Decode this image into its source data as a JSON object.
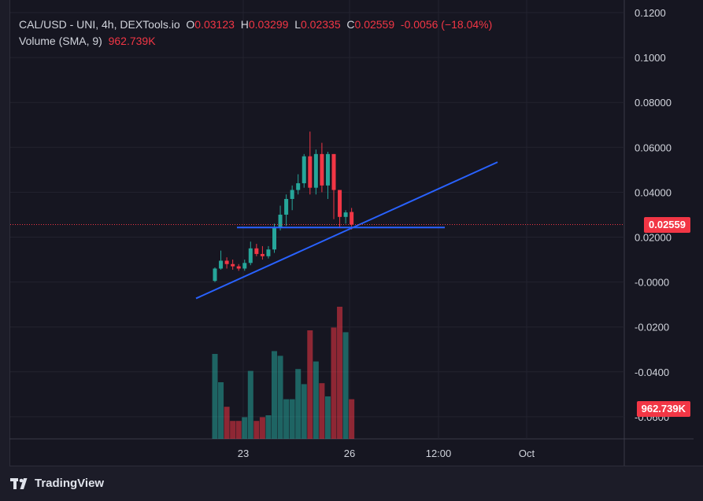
{
  "header": {
    "symbol": "CAL/USD - UNI, 4h, DEXTools.io",
    "open_label": "O",
    "open": "0.03123",
    "high_label": "H",
    "high": "0.03299",
    "low_label": "L",
    "low": "0.02335",
    "close_label": "C",
    "close": "0.02559",
    "change": "-0.0056 (−18.04%)",
    "volume_label": "Volume (SMA, 9)",
    "volume_value": "962.739K"
  },
  "price_tag": "0.02559",
  "volume_tag": "962.739K",
  "brand": "TradingView",
  "colors": {
    "up": "#26a69a",
    "down": "#f23645",
    "trendline": "#2962ff",
    "background": "#161621"
  },
  "chart_data": {
    "type": "candlestick",
    "y_ticks": [
      "0.1200",
      "0.1000",
      "0.08000",
      "0.06000",
      "0.04000",
      "0.02000",
      "-0.0000",
      "-0.0200",
      "-0.0400",
      "-0.0600"
    ],
    "y_range": [
      -0.06,
      0.12
    ],
    "x_ticks": [
      "23",
      "26",
      "12:00",
      "Oct"
    ],
    "last_price": 0.02559,
    "candles": [
      {
        "o": 0.0005,
        "h": 0.0065,
        "l": 0.0,
        "c": 0.006
      },
      {
        "o": 0.006,
        "h": 0.014,
        "l": 0.0055,
        "c": 0.0095
      },
      {
        "o": 0.0095,
        "h": 0.011,
        "l": 0.006,
        "c": 0.008
      },
      {
        "o": 0.008,
        "h": 0.01,
        "l": 0.0055,
        "c": 0.007
      },
      {
        "o": 0.007,
        "h": 0.008,
        "l": 0.005,
        "c": 0.006
      },
      {
        "o": 0.006,
        "h": 0.01,
        "l": 0.005,
        "c": 0.0085
      },
      {
        "o": 0.0085,
        "h": 0.018,
        "l": 0.0075,
        "c": 0.015
      },
      {
        "o": 0.015,
        "h": 0.017,
        "l": 0.0115,
        "c": 0.0125
      },
      {
        "o": 0.0125,
        "h": 0.016,
        "l": 0.01,
        "c": 0.0115
      },
      {
        "o": 0.0115,
        "h": 0.016,
        "l": 0.0105,
        "c": 0.0145
      },
      {
        "o": 0.0145,
        "h": 0.026,
        "l": 0.013,
        "c": 0.0245
      },
      {
        "o": 0.0245,
        "h": 0.034,
        "l": 0.023,
        "c": 0.03
      },
      {
        "o": 0.03,
        "h": 0.039,
        "l": 0.025,
        "c": 0.037
      },
      {
        "o": 0.037,
        "h": 0.043,
        "l": 0.032,
        "c": 0.041
      },
      {
        "o": 0.041,
        "h": 0.048,
        "l": 0.039,
        "c": 0.044
      },
      {
        "o": 0.044,
        "h": 0.057,
        "l": 0.042,
        "c": 0.056
      },
      {
        "o": 0.056,
        "h": 0.067,
        "l": 0.039,
        "c": 0.042
      },
      {
        "o": 0.042,
        "h": 0.059,
        "l": 0.039,
        "c": 0.057
      },
      {
        "o": 0.057,
        "h": 0.062,
        "l": 0.04,
        "c": 0.043
      },
      {
        "o": 0.043,
        "h": 0.058,
        "l": 0.037,
        "c": 0.057
      },
      {
        "o": 0.057,
        "h": 0.057,
        "l": 0.028,
        "c": 0.041
      },
      {
        "o": 0.041,
        "h": 0.041,
        "l": 0.024,
        "c": 0.029
      },
      {
        "o": 0.029,
        "h": 0.032,
        "l": 0.026,
        "c": 0.031
      },
      {
        "o": 0.0312,
        "h": 0.033,
        "l": 0.0234,
        "c": 0.0256
      }
    ],
    "volumes": [
      0.9,
      0.6,
      0.34,
      0.19,
      0.19,
      0.23,
      0.72,
      0.19,
      0.23,
      0.25,
      0.93,
      0.88,
      0.42,
      0.42,
      0.74,
      0.58,
      1.15,
      0.82,
      0.59,
      0.45,
      1.18,
      1.4,
      1.13,
      0.42
    ]
  }
}
